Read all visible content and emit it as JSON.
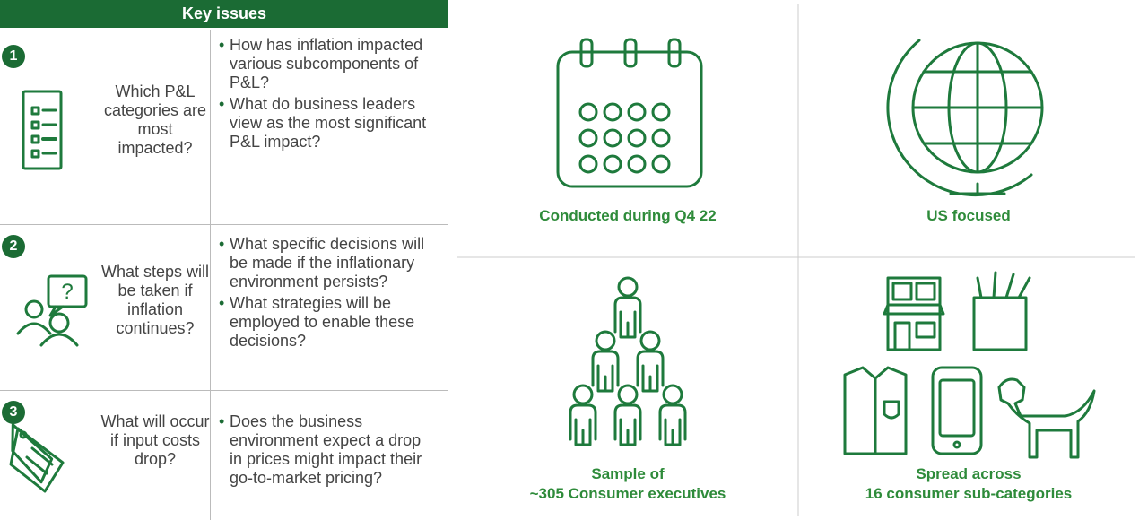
{
  "table": {
    "header": "Key issues",
    "rows": [
      {
        "number": "1",
        "question": "Which P&L categories are most impacted?",
        "bullets": [
          "How has inflation impacted various subcomponents of P&L?",
          "What do business leaders view as the most significant P&L impact?"
        ]
      },
      {
        "number": "2",
        "question": "What steps will be taken if inflation continues?",
        "bullets": [
          "What specific decisions will be made if the inflationary environment persists?",
          "What strategies will be employed to enable these decisions?"
        ]
      },
      {
        "number": "3",
        "question": "What will occur if input costs drop?",
        "bullets": [
          "Does the business environment expect a drop in prices might impact their go-to-market pricing?"
        ]
      }
    ]
  },
  "panels": [
    {
      "caption": [
        "Conducted during Q4 22"
      ]
    },
    {
      "caption": [
        "US focused"
      ]
    },
    {
      "caption": [
        "Sample of",
        "~305 Consumer executives"
      ]
    },
    {
      "caption": [
        "Spread across",
        "16 consumer sub-categories"
      ]
    }
  ]
}
